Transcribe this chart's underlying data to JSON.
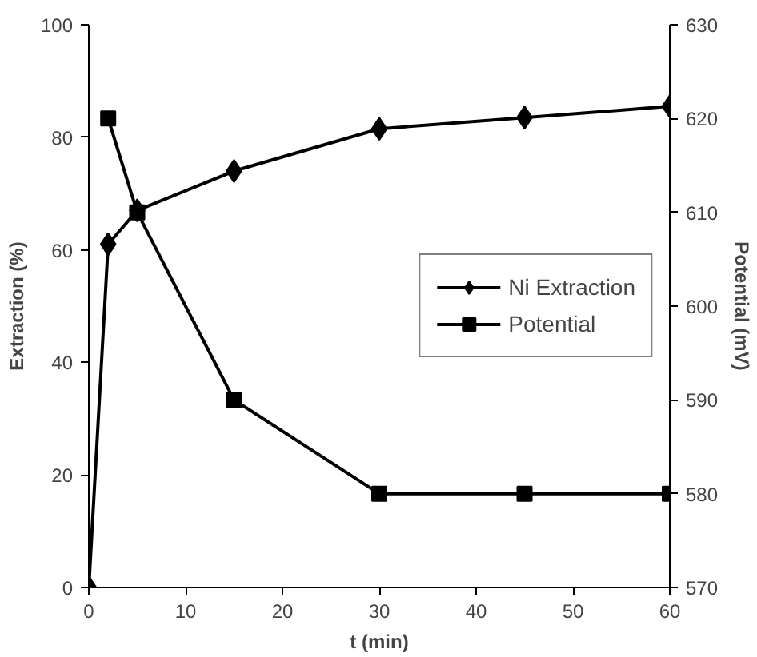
{
  "chart_data": {
    "type": "line",
    "xlabel": "t (min)",
    "ylabel": "Extraction (%)",
    "y2label": "Potential (mV)",
    "xlim": [
      0,
      60
    ],
    "xticks": [
      0,
      10,
      20,
      30,
      40,
      50,
      60
    ],
    "ylim": [
      0,
      100
    ],
    "yticks": [
      0,
      20,
      40,
      60,
      80,
      100
    ],
    "y2lim": [
      570,
      630
    ],
    "y2ticks": [
      570,
      580,
      590,
      600,
      610,
      620,
      630
    ],
    "grid": false,
    "legend": "right",
    "series": [
      {
        "name": "Ni Extraction",
        "color": "#000000",
        "marker": "diamond",
        "x": [
          0,
          2,
          5,
          15,
          30,
          45,
          60
        ],
        "values": [
          0,
          61,
          67,
          74,
          81.5,
          83.5,
          85.5
        ]
      },
      {
        "name": "Potential",
        "color": "#000000",
        "marker": "square",
        "axis": "y2",
        "x": [
          2,
          5,
          15,
          30,
          45,
          60
        ],
        "values": [
          620,
          610,
          590,
          580,
          580,
          580
        ]
      }
    ]
  }
}
